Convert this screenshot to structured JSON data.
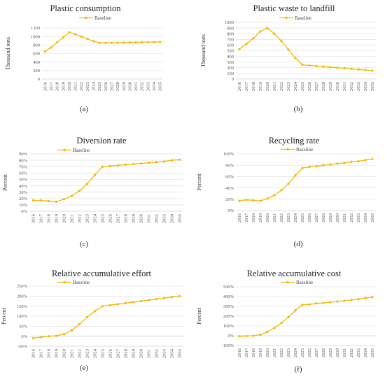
{
  "style": {
    "series_color": "#F5B800",
    "grid_color": "#dddddd",
    "axis_color": "#bbbbbb"
  },
  "chart_data": [
    {
      "type": "line",
      "title": "Plastic consumption",
      "caption": "(a)",
      "ylabel": "Thousand tons",
      "ylim": [
        0,
        1200
      ],
      "yticks": [
        0,
        200,
        400,
        600,
        800,
        1000,
        1200
      ],
      "ytick_labels": [
        "0",
        "200",
        "400",
        "600",
        "800",
        "1000",
        "1200"
      ],
      "x": [
        "2016",
        "2017",
        "2018",
        "2019",
        "2020",
        "2021",
        "2022",
        "2023",
        "2024",
        "2025",
        "2026",
        "2027",
        "2028",
        "2029",
        "2030",
        "2031",
        "2032",
        "2033",
        "2034",
        "2035"
      ],
      "legend": "top",
      "series": [
        {
          "name": "Baseline",
          "values": [
            650,
            740,
            860,
            980,
            1100,
            1050,
            1000,
            940,
            890,
            850,
            850,
            852,
            855,
            857,
            860,
            862,
            865,
            867,
            870,
            872
          ]
        }
      ]
    },
    {
      "type": "line",
      "title": "Plastic waste to landfill",
      "caption": "(b)",
      "ylabel": "Thousand tons",
      "ylim": [
        0,
        1000
      ],
      "yticks": [
        0,
        100,
        200,
        300,
        400,
        500,
        600,
        700,
        800,
        900,
        1000
      ],
      "ytick_labels": [
        "0",
        "100",
        "200",
        "300",
        "400",
        "500",
        "600",
        "700",
        "800",
        "900",
        "1000"
      ],
      "x": [
        "2016",
        "2017",
        "2018",
        "2019",
        "2020",
        "2021",
        "2022",
        "2023",
        "2024",
        "2025",
        "2026",
        "2027",
        "2028",
        "2029",
        "2030",
        "2031",
        "2032",
        "2033",
        "2034",
        "2035"
      ],
      "legend": "top",
      "series": [
        {
          "name": "Baseline",
          "values": [
            530,
            620,
            720,
            840,
            900,
            800,
            670,
            520,
            370,
            250,
            240,
            230,
            220,
            210,
            200,
            190,
            180,
            170,
            160,
            150
          ]
        }
      ]
    },
    {
      "type": "line",
      "title": "Diversion rate",
      "caption": "(c)",
      "ylabel": "Percent",
      "ylim": [
        0,
        90
      ],
      "yticks": [
        0,
        10,
        20,
        30,
        40,
        50,
        60,
        70,
        80,
        90
      ],
      "ytick_labels": [
        "0%",
        "10%",
        "20%",
        "30%",
        "40%",
        "50%",
        "60%",
        "70%",
        "80%",
        "90%"
      ],
      "x": [
        "2016",
        "2017",
        "2018",
        "2019",
        "2020",
        "2021",
        "2022",
        "2023",
        "2024",
        "2025",
        "2026",
        "2027",
        "2028",
        "2029",
        "2030",
        "2031",
        "2032",
        "2033",
        "2034",
        "2035"
      ],
      "legend": "top",
      "series": [
        {
          "name": "Baseline",
          "values": [
            17,
            17,
            16,
            15,
            19,
            24,
            32,
            43,
            57,
            70,
            71,
            72,
            73,
            74,
            75,
            76,
            77,
            78,
            80,
            81
          ]
        }
      ]
    },
    {
      "type": "line",
      "title": "Recycling rate",
      "caption": "(d)",
      "ylabel": "Percent",
      "ylim": [
        0,
        100
      ],
      "yticks": [
        0,
        20,
        40,
        60,
        80,
        100
      ],
      "ytick_labels": [
        "0%",
        "20%",
        "40%",
        "60%",
        "80%",
        "100%"
      ],
      "x": [
        "2016",
        "2017",
        "2018",
        "2019",
        "2020",
        "2021",
        "2022",
        "2023",
        "2024",
        "2025",
        "2026",
        "2027",
        "2028",
        "2029",
        "2030",
        "2031",
        "2032",
        "2033",
        "2034",
        "2035"
      ],
      "legend": "top",
      "series": [
        {
          "name": "Baseline",
          "values": [
            17,
            19,
            18,
            17,
            21,
            27,
            36,
            47,
            62,
            75,
            77,
            78,
            80,
            81,
            83,
            84,
            86,
            87,
            89,
            91
          ]
        }
      ]
    },
    {
      "type": "line",
      "title": "Relative accumulative effort",
      "caption": "(e)",
      "ylabel": "Percent",
      "ylim": [
        -50,
        250
      ],
      "yticks": [
        -50,
        0,
        50,
        100,
        150,
        200,
        250
      ],
      "ytick_labels": [
        "-50%",
        "0%",
        "50%",
        "100%",
        "150%",
        "200%",
        "250%"
      ],
      "x": [
        "2016",
        "2017",
        "2018",
        "2019",
        "2020",
        "2021",
        "2022",
        "2023",
        "2024",
        "2025",
        "2026",
        "2027",
        "2028",
        "2029",
        "2030",
        "2031",
        "2032",
        "2033",
        "2034",
        "2035"
      ],
      "legend": "top",
      "series": [
        {
          "name": "Baseline",
          "values": [
            -10,
            -5,
            0,
            2,
            10,
            30,
            60,
            95,
            125,
            150,
            155,
            160,
            165,
            170,
            175,
            180,
            185,
            190,
            195,
            200
          ]
        }
      ]
    },
    {
      "type": "line",
      "title": "Relative accumulative cost",
      "caption": "(f)",
      "ylabel": "Percent",
      "ylim": [
        -100,
        500
      ],
      "yticks": [
        -100,
        0,
        100,
        200,
        300,
        400,
        500
      ],
      "ytick_labels": [
        "-100%",
        "0%",
        "100%",
        "200%",
        "300%",
        "400%",
        "500%"
      ],
      "x": [
        "2016",
        "2017",
        "2018",
        "2019",
        "2020",
        "2021",
        "2022",
        "2023",
        "2024",
        "2025",
        "2026",
        "2027",
        "2028",
        "2029",
        "2030",
        "2031",
        "2032",
        "2033",
        "2034",
        "2035"
      ],
      "legend": "top",
      "series": [
        {
          "name": "Baseline",
          "values": [
            -5,
            -3,
            0,
            10,
            40,
            80,
            130,
            190,
            260,
            315,
            320,
            330,
            335,
            343,
            350,
            357,
            365,
            375,
            385,
            395
          ]
        }
      ]
    }
  ]
}
